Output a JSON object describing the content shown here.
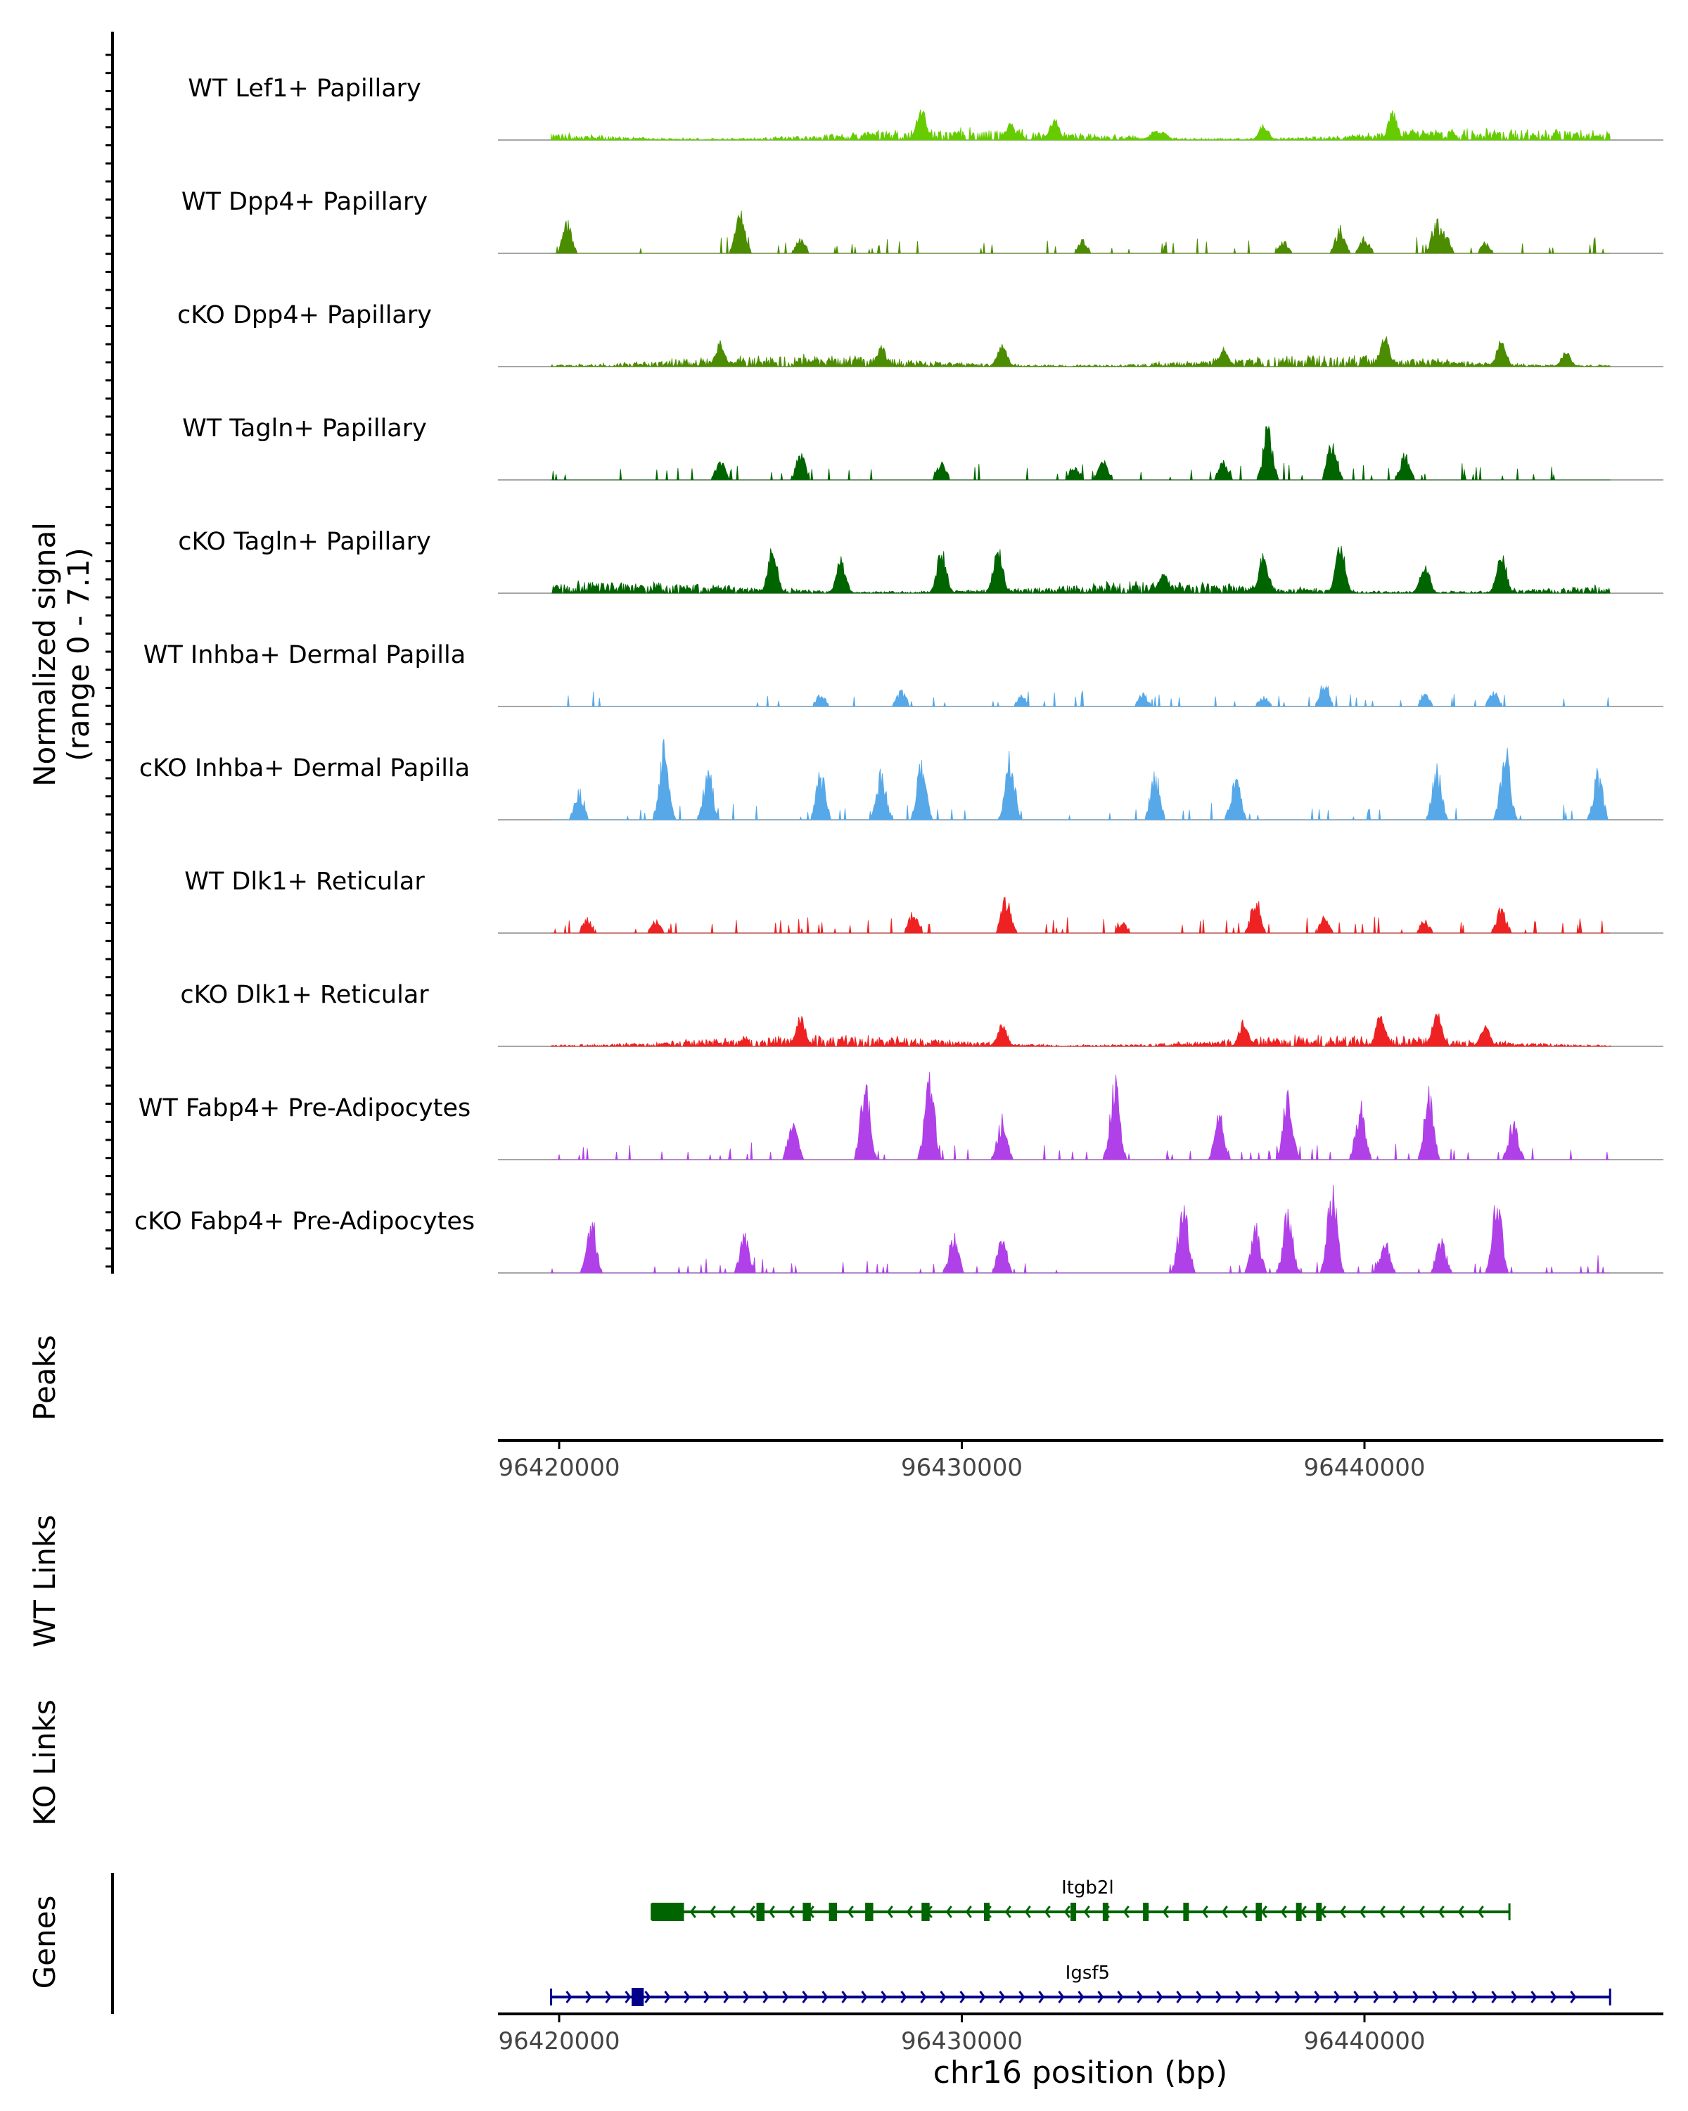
{
  "chart_data": {
    "type": "area",
    "chromosome": "chr16",
    "xlim": [
      96418000,
      96447000
    ],
    "xlabel": "chr16 position (bp)",
    "x_ticks": [
      96420000,
      96430000,
      96440000
    ],
    "x_tick_labels": [
      "96420000",
      "96430000",
      "96440000"
    ],
    "signal_axis_label": "Normalized signal",
    "signal_axis_range": "(range 0 - 7.1)",
    "ylim": [
      0,
      7.1
    ],
    "panel_labels": {
      "peaks": "Peaks",
      "wt_links": "WT Links",
      "ko_links": "KO Links",
      "genes": "Genes"
    },
    "tracks": [
      {
        "name": "WT Lef1+ Papillary",
        "color": "#66cc00",
        "style": "dense",
        "peaks": [
          [
            96432300,
            0.22
          ],
          [
            96440700,
            0.28
          ],
          [
            96429000,
            0.35
          ],
          [
            96441200,
            0.1
          ],
          [
            96435000,
            0.08
          ],
          [
            96431200,
            0.18
          ],
          [
            96437500,
            0.15
          ],
          [
            96434800,
            0.1
          ]
        ]
      },
      {
        "name": "WT Dpp4+ Papillary",
        "color": "#4c8c00",
        "style": "sparse",
        "peaks": [
          [
            96420200,
            0.3
          ],
          [
            96424500,
            0.4
          ],
          [
            96426000,
            0.15
          ],
          [
            96433000,
            0.12
          ],
          [
            96438000,
            0.12
          ],
          [
            96439400,
            0.25
          ],
          [
            96440000,
            0.15
          ],
          [
            96442000,
            0.2
          ],
          [
            96441800,
            0.35
          ],
          [
            96443000,
            0.1
          ]
        ]
      },
      {
        "name": "cKO Dpp4+ Papillary",
        "color": "#4c8c00",
        "style": "dense",
        "peaks": [
          [
            96424000,
            0.25
          ],
          [
            96428000,
            0.2
          ],
          [
            96431000,
            0.25
          ],
          [
            96436500,
            0.2
          ],
          [
            96440500,
            0.3
          ],
          [
            96443400,
            0.28
          ],
          [
            96445000,
            0.15
          ]
        ]
      },
      {
        "name": "WT Tagln+ Papillary",
        "color": "#006400",
        "style": "sparse",
        "peaks": [
          [
            96424000,
            0.2
          ],
          [
            96426000,
            0.25
          ],
          [
            96429500,
            0.15
          ],
          [
            96432800,
            0.15
          ],
          [
            96433500,
            0.2
          ],
          [
            96436500,
            0.2
          ],
          [
            96437600,
            0.5
          ],
          [
            96439200,
            0.42
          ],
          [
            96441000,
            0.25
          ]
        ]
      },
      {
        "name": "cKO Tagln+ Papillary",
        "color": "#006400",
        "style": "dense",
        "peaks": [
          [
            96425300,
            0.45
          ],
          [
            96427000,
            0.35
          ],
          [
            96429500,
            0.45
          ],
          [
            96430900,
            0.48
          ],
          [
            96435000,
            0.2
          ],
          [
            96437500,
            0.4
          ],
          [
            96439400,
            0.5
          ],
          [
            96441500,
            0.3
          ],
          [
            96443400,
            0.45
          ]
        ]
      },
      {
        "name": "WT Inhba+ Dermal Papilla",
        "color": "#56a8e8",
        "style": "sparse",
        "peaks": [
          [
            96426500,
            0.12
          ],
          [
            96428500,
            0.15
          ],
          [
            96431500,
            0.1
          ],
          [
            96434500,
            0.12
          ],
          [
            96437500,
            0.1
          ],
          [
            96439000,
            0.25
          ],
          [
            96441500,
            0.12
          ],
          [
            96443200,
            0.15
          ]
        ]
      },
      {
        "name": "cKO Inhba+ Dermal Papilla",
        "color": "#56a8e8",
        "style": "sparse",
        "peaks": [
          [
            96420500,
            0.3
          ],
          [
            96422600,
            0.7
          ],
          [
            96423700,
            0.5
          ],
          [
            96426500,
            0.45
          ],
          [
            96428000,
            0.45
          ],
          [
            96429000,
            0.55
          ],
          [
            96431200,
            0.6
          ],
          [
            96434800,
            0.45
          ],
          [
            96436800,
            0.45
          ],
          [
            96441800,
            0.5
          ],
          [
            96443500,
            0.72
          ],
          [
            96445800,
            0.45
          ]
        ]
      },
      {
        "name": "WT Dlk1+ Reticular",
        "color": "#ee2222",
        "style": "sparse",
        "peaks": [
          [
            96420700,
            0.15
          ],
          [
            96422400,
            0.12
          ],
          [
            96428800,
            0.2
          ],
          [
            96431100,
            0.35
          ],
          [
            96434000,
            0.1
          ],
          [
            96437300,
            0.35
          ],
          [
            96439000,
            0.15
          ],
          [
            96441500,
            0.12
          ],
          [
            96443400,
            0.25
          ]
        ]
      },
      {
        "name": "cKO Dlk1+ Reticular",
        "color": "#ee2222",
        "style": "dense",
        "peaks": [
          [
            96426000,
            0.3
          ],
          [
            96431000,
            0.25
          ],
          [
            96437000,
            0.25
          ],
          [
            96440400,
            0.32
          ],
          [
            96441800,
            0.35
          ],
          [
            96443000,
            0.2
          ]
        ]
      },
      {
        "name": "WT Fabp4+ Pre-Adipocytes",
        "color": "#b040e8",
        "style": "sparse",
        "peaks": [
          [
            96425800,
            0.4
          ],
          [
            96427600,
            0.75
          ],
          [
            96429200,
            0.88
          ],
          [
            96431000,
            0.4
          ],
          [
            96433800,
            0.75
          ],
          [
            96436400,
            0.42
          ],
          [
            96438100,
            0.65
          ],
          [
            96439900,
            0.55
          ],
          [
            96441600,
            0.65
          ],
          [
            96443700,
            0.4
          ]
        ]
      },
      {
        "name": "cKO Fabp4+ Pre-Adipocytes",
        "color": "#b040e8",
        "style": "sparse",
        "peaks": [
          [
            96420800,
            0.55
          ],
          [
            96424600,
            0.35
          ],
          [
            96429800,
            0.35
          ],
          [
            96431000,
            0.35
          ],
          [
            96435500,
            0.75
          ],
          [
            96437300,
            0.45
          ],
          [
            96438100,
            0.6
          ],
          [
            96439200,
            0.92
          ],
          [
            96440500,
            0.35
          ],
          [
            96441900,
            0.35
          ],
          [
            96443300,
            0.72
          ]
        ]
      }
    ],
    "genes": [
      {
        "name": "Itgb2l",
        "color": "#006400",
        "strand": "-",
        "start": 96422300,
        "end": 96443600,
        "exons": [
          [
            96422300,
            96423100
          ],
          [
            96424900,
            96425100
          ],
          [
            96426050,
            96426250
          ],
          [
            96426700,
            96426900
          ],
          [
            96427600,
            96427800
          ],
          [
            96429000,
            96429200
          ],
          [
            96430550,
            96430650
          ],
          [
            96432700,
            96432800
          ],
          [
            96433500,
            96433600
          ],
          [
            96434500,
            96434600
          ],
          [
            96435500,
            96435600
          ],
          [
            96437300,
            96437450
          ],
          [
            96438300,
            96438400
          ],
          [
            96438800,
            96438900
          ]
        ]
      },
      {
        "name": "Igsf5",
        "color": "#00008b",
        "strand": "+",
        "start": 96419800,
        "end": 96446100,
        "exons": [
          [
            96421800,
            96422100
          ]
        ]
      }
    ]
  }
}
